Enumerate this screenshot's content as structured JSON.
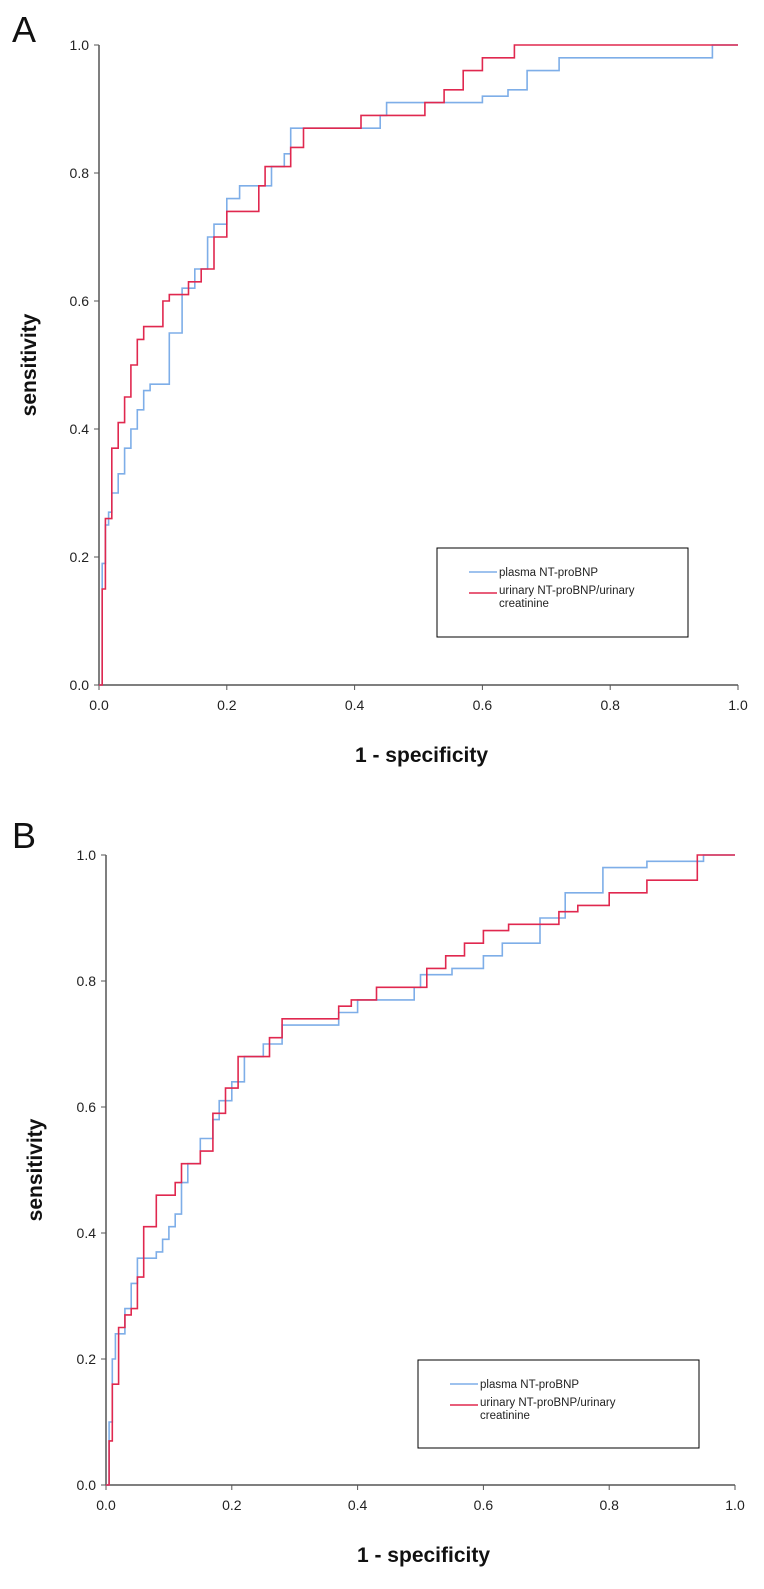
{
  "chart_data": [
    {
      "type": "line",
      "panel_label": "A",
      "xlabel": "1 - specificity",
      "ylabel": "sensitivity",
      "xlim": [
        0,
        1
      ],
      "ylim": [
        0,
        1
      ],
      "xticks": [
        "0.0",
        "0.2",
        "0.4",
        "0.6",
        "0.8",
        "1.0"
      ],
      "yticks": [
        "0.0",
        "0.2",
        "0.4",
        "0.6",
        "0.8",
        "1.0"
      ],
      "grid": false,
      "legend_position": "bottom-right",
      "series": [
        {
          "name": "plasma NT-proBNP",
          "color": "#7eaee8",
          "x": [
            0,
            0.005,
            0.005,
            0.01,
            0.01,
            0.015,
            0.015,
            0.02,
            0.02,
            0.03,
            0.03,
            0.04,
            0.04,
            0.05,
            0.05,
            0.06,
            0.06,
            0.07,
            0.07,
            0.08,
            0.08,
            0.11,
            0.11,
            0.13,
            0.13,
            0.15,
            0.15,
            0.17,
            0.17,
            0.18,
            0.18,
            0.2,
            0.2,
            0.22,
            0.22,
            0.27,
            0.27,
            0.29,
            0.29,
            0.3,
            0.3,
            0.36,
            0.36,
            0.44,
            0.44,
            0.45,
            0.45,
            0.6,
            0.6,
            0.64,
            0.64,
            0.67,
            0.67,
            0.72,
            0.72,
            0.96,
            0.96,
            1.0
          ],
          "y": [
            0,
            0,
            0.19,
            0.19,
            0.25,
            0.25,
            0.27,
            0.27,
            0.3,
            0.3,
            0.33,
            0.33,
            0.37,
            0.37,
            0.4,
            0.4,
            0.43,
            0.43,
            0.46,
            0.46,
            0.47,
            0.47,
            0.55,
            0.55,
            0.62,
            0.62,
            0.65,
            0.65,
            0.7,
            0.7,
            0.72,
            0.72,
            0.76,
            0.76,
            0.78,
            0.78,
            0.81,
            0.81,
            0.83,
            0.83,
            0.87,
            0.87,
            0.87,
            0.87,
            0.89,
            0.89,
            0.91,
            0.91,
            0.92,
            0.92,
            0.93,
            0.93,
            0.96,
            0.96,
            0.98,
            0.98,
            1.0,
            1.0
          ]
        },
        {
          "name": "urinary NT-proBNP/urinary creatinine",
          "color": "#e0284f",
          "x": [
            0,
            0.005,
            0.005,
            0.01,
            0.01,
            0.02,
            0.02,
            0.03,
            0.03,
            0.04,
            0.04,
            0.05,
            0.05,
            0.06,
            0.06,
            0.07,
            0.07,
            0.1,
            0.1,
            0.11,
            0.11,
            0.14,
            0.14,
            0.16,
            0.16,
            0.18,
            0.18,
            0.2,
            0.2,
            0.25,
            0.25,
            0.26,
            0.26,
            0.3,
            0.3,
            0.32,
            0.32,
            0.41,
            0.41,
            0.51,
            0.51,
            0.54,
            0.54,
            0.57,
            0.57,
            0.6,
            0.6,
            0.65,
            0.65,
            1.0
          ],
          "y": [
            0,
            0,
            0.15,
            0.15,
            0.26,
            0.26,
            0.37,
            0.37,
            0.41,
            0.41,
            0.45,
            0.45,
            0.5,
            0.5,
            0.54,
            0.54,
            0.56,
            0.56,
            0.6,
            0.6,
            0.61,
            0.61,
            0.63,
            0.63,
            0.65,
            0.65,
            0.7,
            0.7,
            0.74,
            0.74,
            0.78,
            0.78,
            0.81,
            0.81,
            0.84,
            0.84,
            0.87,
            0.87,
            0.89,
            0.89,
            0.91,
            0.91,
            0.93,
            0.93,
            0.96,
            0.96,
            0.98,
            0.98,
            1.0,
            1.0
          ]
        }
      ]
    },
    {
      "type": "line",
      "panel_label": "B",
      "xlabel": "1 - specificity",
      "ylabel": "sensitivity",
      "xlim": [
        0,
        1
      ],
      "ylim": [
        0,
        1
      ],
      "xticks": [
        "0.0",
        "0.2",
        "0.4",
        "0.6",
        "0.8",
        "1.0"
      ],
      "yticks": [
        "0.0",
        "0.2",
        "0.4",
        "0.6",
        "0.8",
        "1.0"
      ],
      "grid": false,
      "legend_position": "bottom-right",
      "series": [
        {
          "name": "plasma NT-proBNP",
          "color": "#7eaee8",
          "x": [
            0,
            0.005,
            0.005,
            0.01,
            0.01,
            0.015,
            0.015,
            0.03,
            0.03,
            0.04,
            0.04,
            0.05,
            0.05,
            0.08,
            0.08,
            0.09,
            0.09,
            0.1,
            0.1,
            0.11,
            0.11,
            0.12,
            0.12,
            0.13,
            0.13,
            0.15,
            0.15,
            0.17,
            0.17,
            0.18,
            0.18,
            0.2,
            0.2,
            0.22,
            0.22,
            0.25,
            0.25,
            0.28,
            0.28,
            0.37,
            0.37,
            0.4,
            0.4,
            0.49,
            0.49,
            0.5,
            0.5,
            0.55,
            0.55,
            0.6,
            0.6,
            0.63,
            0.63,
            0.69,
            0.69,
            0.73,
            0.73,
            0.79,
            0.79,
            0.86,
            0.86,
            0.95,
            0.95,
            1.0
          ],
          "y": [
            0,
            0,
            0.1,
            0.1,
            0.2,
            0.2,
            0.24,
            0.24,
            0.28,
            0.28,
            0.32,
            0.32,
            0.36,
            0.36,
            0.37,
            0.37,
            0.39,
            0.39,
            0.41,
            0.41,
            0.43,
            0.43,
            0.48,
            0.48,
            0.51,
            0.51,
            0.55,
            0.55,
            0.58,
            0.58,
            0.61,
            0.61,
            0.64,
            0.64,
            0.68,
            0.68,
            0.7,
            0.7,
            0.73,
            0.73,
            0.75,
            0.75,
            0.77,
            0.77,
            0.79,
            0.79,
            0.81,
            0.81,
            0.82,
            0.82,
            0.84,
            0.84,
            0.86,
            0.86,
            0.9,
            0.9,
            0.94,
            0.94,
            0.98,
            0.98,
            0.99,
            0.99,
            1.0,
            1.0
          ]
        },
        {
          "name": "urinary NT-proBNP/urinary creatinine",
          "color": "#e0284f",
          "x": [
            0,
            0.005,
            0.005,
            0.01,
            0.01,
            0.02,
            0.02,
            0.03,
            0.03,
            0.04,
            0.04,
            0.05,
            0.05,
            0.06,
            0.06,
            0.08,
            0.08,
            0.11,
            0.11,
            0.12,
            0.12,
            0.15,
            0.15,
            0.17,
            0.17,
            0.19,
            0.19,
            0.21,
            0.21,
            0.26,
            0.26,
            0.28,
            0.28,
            0.37,
            0.37,
            0.39,
            0.39,
            0.43,
            0.43,
            0.51,
            0.51,
            0.54,
            0.54,
            0.57,
            0.57,
            0.6,
            0.6,
            0.64,
            0.64,
            0.72,
            0.72,
            0.75,
            0.75,
            0.8,
            0.8,
            0.86,
            0.86,
            0.94,
            0.94,
            1.0
          ],
          "y": [
            0,
            0,
            0.07,
            0.07,
            0.16,
            0.16,
            0.25,
            0.25,
            0.27,
            0.27,
            0.28,
            0.28,
            0.33,
            0.33,
            0.41,
            0.41,
            0.46,
            0.46,
            0.48,
            0.48,
            0.51,
            0.51,
            0.53,
            0.53,
            0.59,
            0.59,
            0.63,
            0.63,
            0.68,
            0.68,
            0.71,
            0.71,
            0.74,
            0.74,
            0.76,
            0.76,
            0.77,
            0.77,
            0.79,
            0.79,
            0.82,
            0.82,
            0.84,
            0.84,
            0.86,
            0.86,
            0.88,
            0.88,
            0.89,
            0.89,
            0.91,
            0.91,
            0.92,
            0.92,
            0.94,
            0.94,
            0.96,
            0.96,
            1.0,
            1.0
          ]
        }
      ]
    }
  ]
}
